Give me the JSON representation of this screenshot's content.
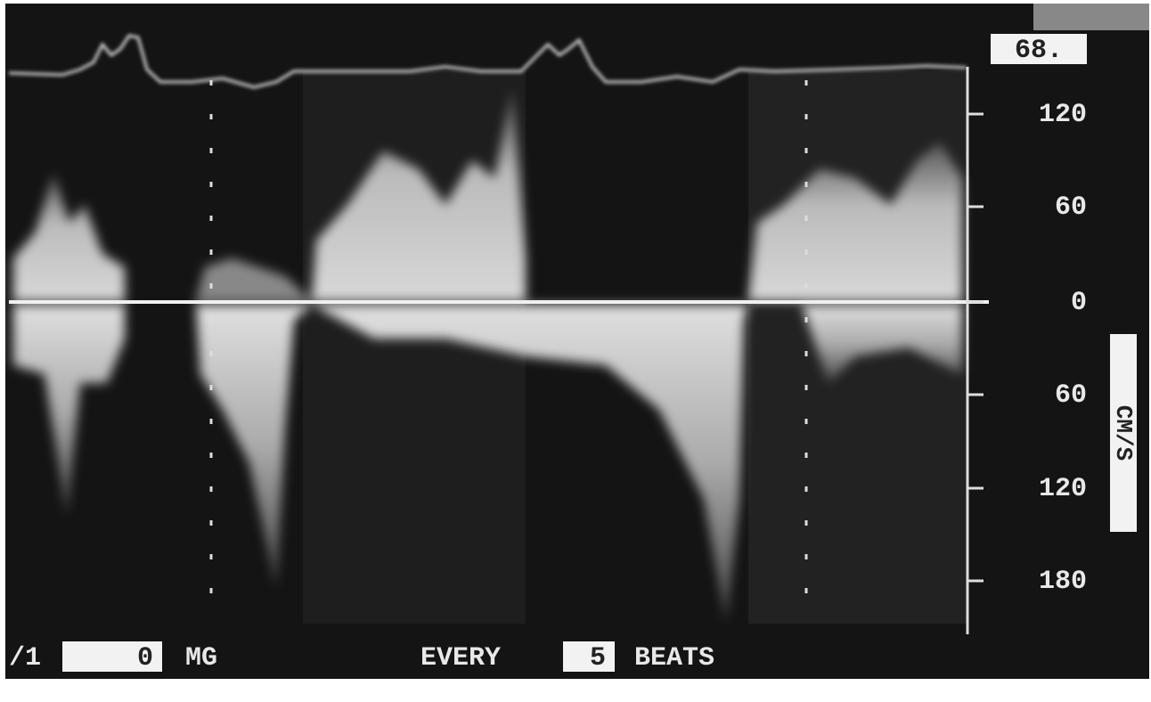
{
  "header": {
    "heart_rate": "68."
  },
  "scale": {
    "labels": [
      "120",
      "60",
      "0",
      "60",
      "120",
      "180"
    ],
    "unit": "CM/S"
  },
  "footer": {
    "channel": "/1",
    "gain_value": "0",
    "gain_unit": "MG",
    "every": "EVERY",
    "beats_value": "5",
    "beats_unit": "BEATS"
  }
}
